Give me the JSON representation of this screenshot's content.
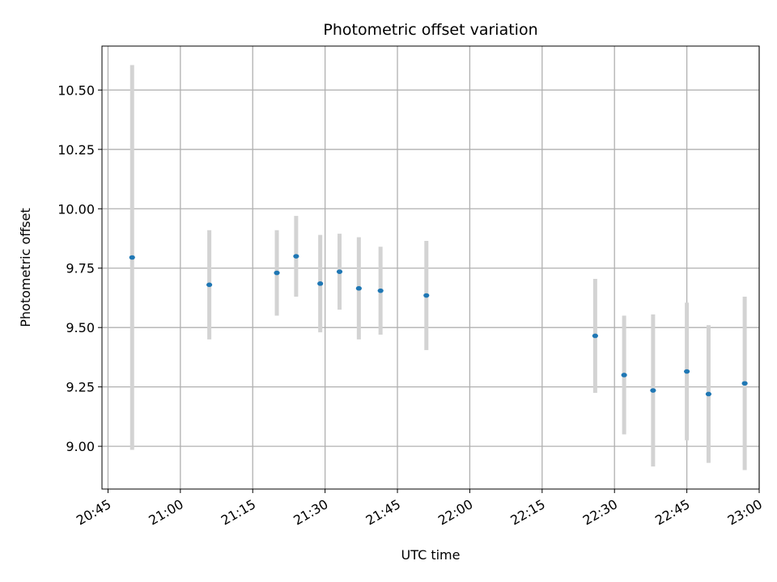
{
  "chart_data": {
    "type": "scatter",
    "title": "Photometric offset variation",
    "xlabel": "UTC time",
    "ylabel": "Photometric offset",
    "x_ticks": [
      "20:45",
      "21:00",
      "21:15",
      "21:30",
      "21:45",
      "22:00",
      "22:15",
      "22:30",
      "22:45",
      "23:00"
    ],
    "xlim": [
      "20:43:45",
      "23:00:00"
    ],
    "y_ticks": [
      "9.00",
      "9.25",
      "9.50",
      "9.75",
      "10.00",
      "10.25",
      "10.50"
    ],
    "ylim": [
      8.82,
      10.685
    ],
    "grid": true,
    "colors": {
      "point": "#1f77b4",
      "errorbar": "#d3d3d3",
      "grid": "#b0b0b0"
    },
    "series": [
      {
        "points": [
          {
            "x": "20:50:00",
            "y": 9.795,
            "yerr": 0.81
          },
          {
            "x": "21:06:00",
            "y": 9.68,
            "yerr": 0.23
          },
          {
            "x": "21:20:00",
            "y": 9.73,
            "yerr": 0.18
          },
          {
            "x": "21:24:00",
            "y": 9.8,
            "yerr": 0.17
          },
          {
            "x": "21:29:00",
            "y": 9.685,
            "yerr": 0.205
          },
          {
            "x": "21:33:00",
            "y": 9.735,
            "yerr": 0.16
          },
          {
            "x": "21:37:00",
            "y": 9.665,
            "yerr": 0.215
          },
          {
            "x": "21:41:30",
            "y": 9.655,
            "yerr": 0.185
          },
          {
            "x": "21:51:00",
            "y": 9.635,
            "yerr": 0.23
          },
          {
            "x": "22:26:00",
            "y": 9.465,
            "yerr": 0.24
          },
          {
            "x": "22:32:00",
            "y": 9.3,
            "yerr": 0.25
          },
          {
            "x": "22:38:00",
            "y": 9.235,
            "yerr": 0.32
          },
          {
            "x": "22:45:00",
            "y": 9.315,
            "yerr": 0.29
          },
          {
            "x": "22:49:30",
            "y": 9.22,
            "yerr": 0.29
          },
          {
            "x": "22:57:00",
            "y": 9.265,
            "yerr": 0.365
          }
        ]
      }
    ]
  }
}
